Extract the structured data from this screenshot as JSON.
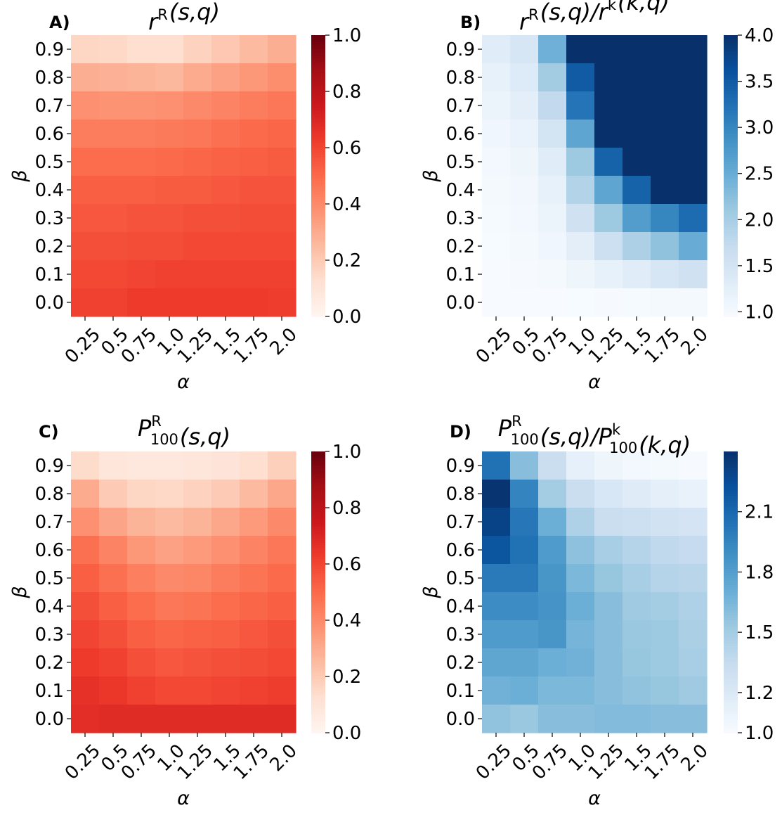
{
  "chart_data": [
    {
      "type": "heatmap",
      "panel_label": "A)",
      "title": {
        "main": "r",
        "sup": "R",
        "rest": "(s,q)"
      },
      "xlabel": "α",
      "ylabel": "β",
      "x_categories": [
        "0.25",
        "0.5",
        "0.75",
        "1.0",
        "1.25",
        "1.5",
        "1.75",
        "2.0"
      ],
      "y_categories": [
        "0.9",
        "0.8",
        "0.7",
        "0.6",
        "0.5",
        "0.4",
        "0.3",
        "0.2",
        "0.1",
        "0.0"
      ],
      "colormap": "Reds",
      "vmin": 0.0,
      "vmax": 1.0,
      "colorbar_ticks": [
        "0.0",
        "0.2",
        "0.4",
        "0.6",
        "0.8",
        "1.0"
      ],
      "values": [
        [
          0.16,
          0.15,
          0.13,
          0.13,
          0.17,
          0.21,
          0.25,
          0.29
        ],
        [
          0.29,
          0.28,
          0.27,
          0.26,
          0.3,
          0.33,
          0.36,
          0.39
        ],
        [
          0.38,
          0.37,
          0.37,
          0.38,
          0.4,
          0.42,
          0.44,
          0.46
        ],
        [
          0.44,
          0.44,
          0.44,
          0.45,
          0.46,
          0.48,
          0.5,
          0.51
        ],
        [
          0.49,
          0.49,
          0.49,
          0.5,
          0.51,
          0.52,
          0.53,
          0.54
        ],
        [
          0.53,
          0.53,
          0.53,
          0.54,
          0.54,
          0.55,
          0.56,
          0.56
        ],
        [
          0.55,
          0.55,
          0.56,
          0.56,
          0.57,
          0.57,
          0.58,
          0.58
        ],
        [
          0.57,
          0.57,
          0.58,
          0.58,
          0.59,
          0.59,
          0.59,
          0.59
        ],
        [
          0.59,
          0.59,
          0.6,
          0.61,
          0.61,
          0.61,
          0.61,
          0.61
        ],
        [
          0.61,
          0.61,
          0.63,
          0.63,
          0.63,
          0.63,
          0.63,
          0.62
        ]
      ]
    },
    {
      "type": "heatmap",
      "panel_label": "B)",
      "title": {
        "main": "r",
        "sup": "R",
        "rest": "(s,q)/r",
        "sup2": "k",
        "rest2": "(k,q)"
      },
      "xlabel": "α",
      "ylabel": "β",
      "x_categories": [
        "0.25",
        "0.5",
        "0.75",
        "1.0",
        "1.25",
        "1.5",
        "1.75",
        "2.0"
      ],
      "y_categories": [
        "0.9",
        "0.8",
        "0.7",
        "0.6",
        "0.5",
        "0.4",
        "0.3",
        "0.2",
        "0.1",
        "0.0"
      ],
      "colormap": "Blues",
      "vmin": 0.95,
      "vmax": 4.0,
      "colorbar_ticks": [
        "1.0",
        "1.5",
        "2.0",
        "2.5",
        "3.0",
        "3.5",
        "4.0"
      ],
      "values": [
        [
          1.3,
          1.45,
          2.45,
          4.0,
          4.0,
          4.0,
          4.0,
          4.0
        ],
        [
          1.2,
          1.35,
          2.05,
          3.5,
          4.0,
          4.0,
          4.0,
          4.0
        ],
        [
          1.12,
          1.25,
          1.75,
          3.2,
          4.0,
          4.0,
          4.0,
          4.0
        ],
        [
          1.06,
          1.15,
          1.5,
          2.6,
          4.0,
          4.0,
          4.0,
          4.0
        ],
        [
          1.02,
          1.08,
          1.3,
          2.1,
          3.4,
          4.0,
          4.0,
          4.0
        ],
        [
          0.99,
          1.04,
          1.2,
          1.9,
          2.6,
          3.4,
          4.0,
          4.0
        ],
        [
          0.98,
          1.01,
          1.12,
          1.55,
          2.1,
          2.7,
          3.0,
          3.3
        ],
        [
          0.96,
          0.99,
          1.06,
          1.25,
          1.6,
          1.95,
          2.2,
          2.5
        ],
        [
          0.95,
          0.97,
          1.0,
          1.08,
          1.2,
          1.3,
          1.45,
          1.55
        ],
        [
          0.95,
          0.95,
          0.95,
          0.96,
          0.97,
          0.98,
          0.99,
          0.99
        ]
      ]
    },
    {
      "type": "heatmap",
      "panel_label": "C)",
      "title": {
        "main": "P",
        "sup": "R",
        "sub": "100",
        "rest": "(s,q)"
      },
      "xlabel": "α",
      "ylabel": "β",
      "x_categories": [
        "0.25",
        "0.5",
        "0.75",
        "1.0",
        "1.25",
        "1.5",
        "1.75",
        "2.0"
      ],
      "y_categories": [
        "0.9",
        "0.8",
        "0.7",
        "0.6",
        "0.5",
        "0.4",
        "0.3",
        "0.2",
        "0.1",
        "0.0"
      ],
      "colormap": "Reds",
      "vmin": 0.0,
      "vmax": 1.0,
      "colorbar_ticks": [
        "0.0",
        "0.2",
        "0.4",
        "0.6",
        "0.8",
        "1.0"
      ],
      "values": [
        [
          0.14,
          0.09,
          0.08,
          0.08,
          0.09,
          0.1,
          0.13,
          0.18
        ],
        [
          0.3,
          0.2,
          0.16,
          0.15,
          0.17,
          0.2,
          0.25,
          0.31
        ],
        [
          0.38,
          0.32,
          0.27,
          0.25,
          0.27,
          0.31,
          0.35,
          0.4
        ],
        [
          0.48,
          0.42,
          0.36,
          0.33,
          0.35,
          0.38,
          0.42,
          0.46
        ],
        [
          0.53,
          0.48,
          0.43,
          0.4,
          0.41,
          0.44,
          0.47,
          0.5
        ],
        [
          0.57,
          0.53,
          0.49,
          0.46,
          0.47,
          0.49,
          0.51,
          0.53
        ],
        [
          0.6,
          0.57,
          0.53,
          0.51,
          0.52,
          0.53,
          0.55,
          0.57
        ],
        [
          0.63,
          0.61,
          0.57,
          0.55,
          0.56,
          0.57,
          0.58,
          0.59
        ],
        [
          0.66,
          0.64,
          0.61,
          0.59,
          0.59,
          0.6,
          0.61,
          0.62
        ],
        [
          0.67,
          0.68,
          0.68,
          0.68,
          0.68,
          0.68,
          0.68,
          0.68
        ]
      ]
    },
    {
      "type": "heatmap",
      "panel_label": "D)",
      "title": {
        "main": "P",
        "sup": "R",
        "sub": "100",
        "rest": "(s,q)/P",
        "sup2": "k",
        "sub2": "100",
        "rest2": "(k,q)"
      },
      "xlabel": "α",
      "ylabel": "β",
      "x_categories": [
        "0.25",
        "0.5",
        "0.75",
        "1.0",
        "1.25",
        "1.5",
        "1.75",
        "2.0"
      ],
      "y_categories": [
        "0.9",
        "0.8",
        "0.7",
        "0.6",
        "0.5",
        "0.4",
        "0.3",
        "0.2",
        "0.1",
        "0.0"
      ],
      "colormap": "Blues",
      "vmin": 1.0,
      "vmax": 2.4,
      "colorbar_ticks": [
        "1.0",
        "1.2",
        "1.5",
        "1.8",
        "2.1"
      ],
      "values": [
        [
          2.05,
          1.6,
          1.32,
          1.12,
          1.06,
          1.03,
          1.02,
          1.01
        ],
        [
          2.38,
          1.95,
          1.5,
          1.32,
          1.22,
          1.17,
          1.13,
          1.1
        ],
        [
          2.3,
          2.02,
          1.7,
          1.45,
          1.32,
          1.3,
          1.27,
          1.25
        ],
        [
          2.2,
          2.05,
          1.82,
          1.58,
          1.48,
          1.42,
          1.37,
          1.35
        ],
        [
          2.0,
          2.0,
          1.85,
          1.64,
          1.55,
          1.48,
          1.42,
          1.41
        ],
        [
          1.9,
          1.9,
          1.86,
          1.7,
          1.6,
          1.52,
          1.5,
          1.45
        ],
        [
          1.82,
          1.82,
          1.85,
          1.66,
          1.6,
          1.54,
          1.53,
          1.47
        ],
        [
          1.75,
          1.75,
          1.7,
          1.68,
          1.6,
          1.55,
          1.53,
          1.48
        ],
        [
          1.68,
          1.7,
          1.64,
          1.64,
          1.6,
          1.57,
          1.55,
          1.52
        ],
        [
          1.57,
          1.54,
          1.6,
          1.6,
          1.62,
          1.62,
          1.6,
          1.6
        ]
      ]
    }
  ]
}
